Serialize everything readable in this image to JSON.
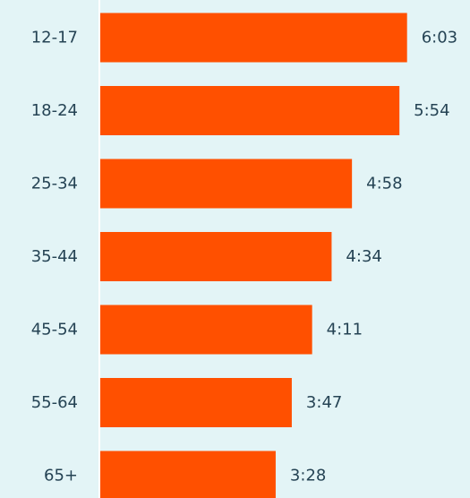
{
  "colors": {
    "background": "#e3f4f6",
    "bar": "#ff5000",
    "axis": "#ffffff",
    "text": "#254354"
  },
  "chart_data": {
    "type": "bar",
    "orientation": "horizontal",
    "categories": [
      "12-17",
      "18-24",
      "25-34",
      "35-44",
      "45-54",
      "55-64",
      "65+"
    ],
    "values": [
      363,
      354,
      298,
      274,
      251,
      227,
      208
    ],
    "value_labels": [
      "6:03",
      "5:54",
      "4:58",
      "4:34",
      "4:11",
      "3:47",
      "3:28"
    ],
    "value_unit": "minutes:seconds",
    "title": "",
    "xlabel": "",
    "ylabel": "",
    "xlim": [
      0,
      380
    ],
    "grid": false,
    "legend": "none"
  }
}
